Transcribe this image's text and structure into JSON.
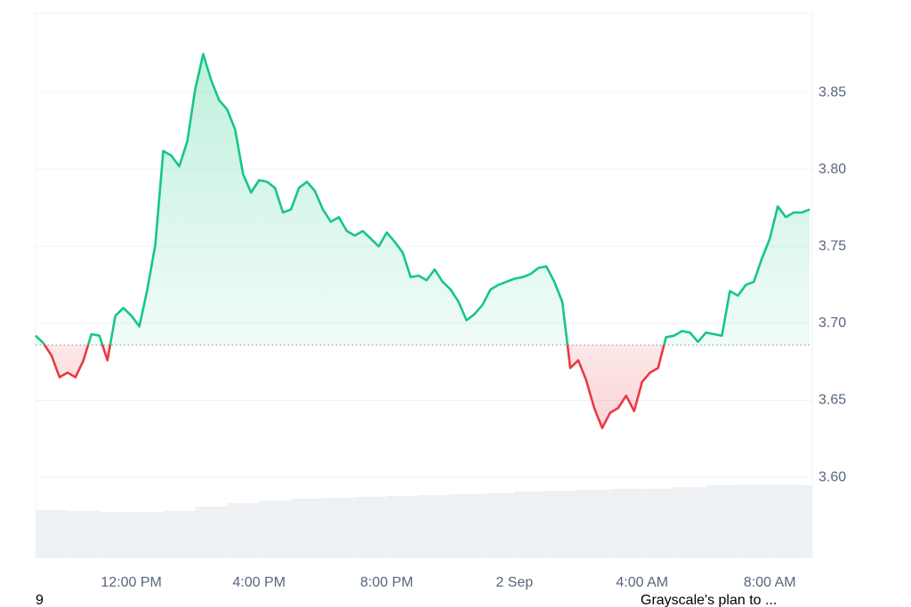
{
  "chart_data": {
    "type": "line",
    "x": [
      0,
      0.25,
      0.5,
      0.75,
      1,
      1.25,
      1.5,
      1.75,
      2,
      2.25,
      2.5,
      2.75,
      3,
      3.25,
      3.5,
      3.75,
      4,
      4.25,
      4.5,
      4.75,
      5,
      5.25,
      5.5,
      5.75,
      6,
      6.25,
      6.5,
      6.75,
      7,
      7.25,
      7.5,
      7.75,
      8,
      8.25,
      8.5,
      8.75,
      9,
      9.25,
      9.5,
      9.75,
      10,
      10.25,
      10.5,
      10.75,
      11,
      11.25,
      11.5,
      11.75,
      12,
      12.25,
      12.5,
      12.75,
      13,
      13.25,
      13.5,
      13.75,
      14,
      14.25,
      14.5,
      14.75,
      15,
      15.25,
      15.5,
      15.75,
      16,
      16.25,
      16.5,
      16.75,
      17,
      17.25,
      17.5,
      17.75,
      18,
      18.25,
      18.5,
      18.75,
      19,
      19.25,
      19.5,
      19.75,
      20,
      20.25,
      20.5,
      20.75,
      21,
      21.25,
      21.5,
      21.75,
      22,
      22.25,
      22.5,
      22.75,
      23,
      23.25,
      23.5,
      23.75,
      24,
      24.25
    ],
    "series": [
      {
        "color": "#16c784",
        "down_color": "#ea3943",
        "values": [
          3.692,
          3.687,
          3.679,
          3.665,
          3.668,
          3.665,
          3.676,
          3.693,
          3.692,
          3.676,
          3.705,
          3.71,
          3.705,
          3.698,
          3.722,
          3.751,
          3.812,
          3.809,
          3.802,
          3.818,
          3.852,
          3.875,
          3.858,
          3.845,
          3.839,
          3.826,
          3.797,
          3.785,
          3.793,
          3.792,
          3.788,
          3.772,
          3.774,
          3.788,
          3.792,
          3.786,
          3.774,
          3.766,
          3.769,
          3.76,
          3.757,
          3.76,
          3.755,
          3.75,
          3.759,
          3.753,
          3.746,
          3.73,
          3.731,
          3.728,
          3.735,
          3.727,
          3.722,
          3.714,
          3.702,
          3.706,
          3.712,
          3.722,
          3.725,
          3.727,
          3.729,
          3.73,
          3.732,
          3.736,
          3.737,
          3.727,
          3.714,
          3.671,
          3.676,
          3.663,
          3.645,
          3.632,
          3.642,
          3.645,
          3.653,
          3.643,
          3.662,
          3.668,
          3.671,
          3.691,
          3.692,
          3.695,
          3.694,
          3.688,
          3.694,
          3.693,
          3.692,
          3.721,
          3.718,
          3.725,
          3.727,
          3.742,
          3.755,
          3.776,
          3.769,
          3.772,
          3.772,
          3.774
        ]
      }
    ],
    "baseline": 3.686,
    "volume_bars": {
      "color": "#eef1f4",
      "x": [
        0,
        1,
        2,
        3,
        4,
        5,
        6,
        7,
        8,
        9,
        10,
        11,
        12,
        13,
        14,
        15,
        16,
        17,
        18,
        19,
        20,
        21,
        22,
        23,
        24
      ],
      "values": [
        3.5787,
        3.5781,
        3.5775,
        3.5775,
        3.5781,
        3.581,
        3.5833,
        3.585,
        3.5862,
        3.5867,
        3.5873,
        3.5879,
        3.5885,
        3.589,
        3.5896,
        3.5908,
        3.5913,
        3.5919,
        3.5925,
        3.5925,
        3.5937,
        3.5948,
        3.5954,
        3.5954,
        3.5948
      ]
    },
    "xlim": [
      0,
      24.33
    ],
    "ylim": [
      3.5475,
      3.9014
    ],
    "xticks": [
      {
        "value": 3,
        "label": "12:00 PM"
      },
      {
        "value": 7,
        "label": "4:00 PM"
      },
      {
        "value": 11,
        "label": "8:00 PM"
      },
      {
        "value": 15,
        "label": "2 Sep"
      },
      {
        "value": 19,
        "label": "4:00 AM"
      },
      {
        "value": 23,
        "label": "8:00 AM"
      }
    ],
    "yticks": [
      {
        "value": 3.6,
        "label": "3.60"
      },
      3.65,
      {
        "value": 3.7,
        "label": "3.70"
      },
      3.75,
      {
        "value": 3.8,
        "label": "3.80"
      },
      3.85
    ],
    "grid": true,
    "annotations": [
      "9",
      "Grayscale's plan to ..."
    ]
  }
}
